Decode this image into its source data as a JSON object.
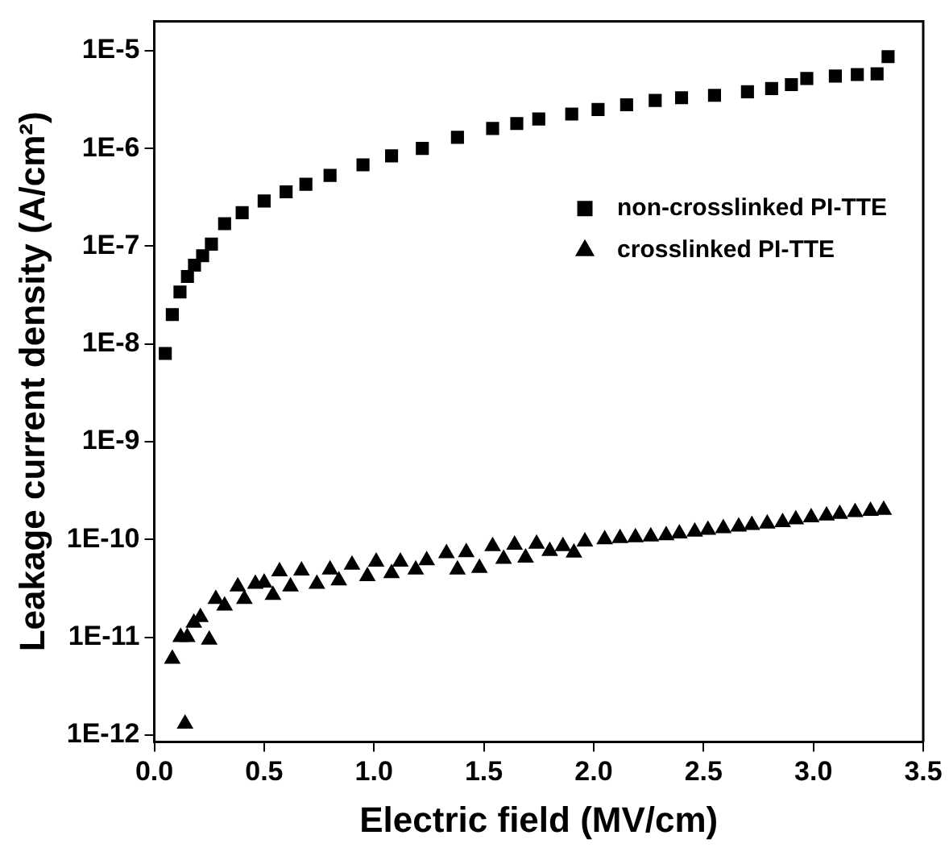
{
  "chart_data": {
    "type": "scatter",
    "xlabel": "Electric field (MV/cm)",
    "ylabel": "Leakage current density (A/cm²)",
    "log": "y",
    "xlim": [
      0,
      3.5
    ],
    "xticks": [
      {
        "value": 0,
        "label": "0.0"
      },
      {
        "value": 0.5,
        "label": "0.5"
      },
      {
        "value": 1,
        "label": "1.0"
      },
      {
        "value": 1.5,
        "label": "1.5"
      },
      {
        "value": 2,
        "label": "2.0"
      },
      {
        "value": 2.5,
        "label": "2.5"
      },
      {
        "value": 3,
        "label": "3.0"
      },
      {
        "value": 3.5,
        "label": "3.5"
      }
    ],
    "ylim": [
      8.5e-13,
      2e-05
    ],
    "yticks": [
      {
        "value": 1e-12,
        "label": "1E-12"
      },
      {
        "value": 1e-11,
        "label": "1E-11"
      },
      {
        "value": 1e-10,
        "label": "1E-10"
      },
      {
        "value": 1e-09,
        "label": "1E-9"
      },
      {
        "value": 1e-08,
        "label": "1E-8"
      },
      {
        "value": 1e-07,
        "label": "1E-7"
      },
      {
        "value": 1e-06,
        "label": "1E-6"
      },
      {
        "value": 1e-05,
        "label": "1E-5"
      }
    ],
    "legend": "right",
    "grid": false,
    "series": [
      {
        "name": "non-crosslinked PI-TTE",
        "color": "#000000",
        "marker": "square",
        "x": [
          0.05,
          0.082,
          0.117,
          0.151,
          0.183,
          0.22,
          0.26,
          0.32,
          0.4,
          0.5,
          0.6,
          0.69,
          0.8,
          0.95,
          1.08,
          1.22,
          1.38,
          1.54,
          1.65,
          1.75,
          1.9,
          2.02,
          2.15,
          2.28,
          2.4,
          2.55,
          2.7,
          2.81,
          2.9,
          2.97,
          3.1,
          3.2,
          3.29,
          3.34
        ],
        "values": [
          8e-09,
          2e-08,
          3.4e-08,
          4.9e-08,
          6.4e-08,
          8e-08,
          1.05e-07,
          1.7e-07,
          2.2e-07,
          2.9e-07,
          3.6e-07,
          4.3e-07,
          5.3e-07,
          6.8e-07,
          8.4e-07,
          1e-06,
          1.3e-06,
          1.6e-06,
          1.8e-06,
          2e-06,
          2.25e-06,
          2.5e-06,
          2.8e-06,
          3.1e-06,
          3.3e-06,
          3.5e-06,
          3.8e-06,
          4.1e-06,
          4.5e-06,
          5.2e-06,
          5.5e-06,
          5.7e-06,
          5.8e-06,
          8.7e-06
        ]
      },
      {
        "name": "crosslinked PI-TTE",
        "color": "#000000",
        "marker": "triangle",
        "x": [
          0.082,
          0.12,
          0.14,
          0.15,
          0.18,
          0.21,
          0.25,
          0.28,
          0.32,
          0.38,
          0.41,
          0.46,
          0.5,
          0.54,
          0.57,
          0.62,
          0.67,
          0.74,
          0.8,
          0.84,
          0.9,
          0.97,
          1.01,
          1.08,
          1.12,
          1.19,
          1.24,
          1.33,
          1.38,
          1.42,
          1.48,
          1.54,
          1.59,
          1.64,
          1.69,
          1.74,
          1.8,
          1.86,
          1.91,
          1.96,
          2.05,
          2.12,
          2.19,
          2.26,
          2.33,
          2.39,
          2.46,
          2.52,
          2.59,
          2.66,
          2.72,
          2.79,
          2.86,
          2.92,
          2.99,
          3.06,
          3.12,
          3.19,
          3.26,
          3.32
        ],
        "values": [
          6e-12,
          1e-11,
          1.3e-12,
          1e-11,
          1.4e-11,
          1.6e-11,
          9.4e-12,
          2.45e-11,
          2.1e-11,
          3.3e-11,
          2.45e-11,
          3.5e-11,
          3.6e-11,
          2.7e-11,
          4.7e-11,
          3.3e-11,
          4.8e-11,
          3.5e-11,
          4.9e-11,
          3.8e-11,
          5.5e-11,
          4.2e-11,
          5.9e-11,
          4.5e-11,
          5.9e-11,
          4.9e-11,
          6.1e-11,
          7.2e-11,
          4.9e-11,
          7.4e-11,
          5.1e-11,
          8.5e-11,
          6.3e-11,
          8.8e-11,
          6.5e-11,
          9e-11,
          7.6e-11,
          8.5e-11,
          7.3e-11,
          9.5e-11,
          1e-10,
          1.03e-10,
          1.05e-10,
          1.07e-10,
          1.1e-10,
          1.15e-10,
          1.2e-10,
          1.25e-10,
          1.3e-10,
          1.35e-10,
          1.4e-10,
          1.45e-10,
          1.5e-10,
          1.6e-10,
          1.68e-10,
          1.75e-10,
          1.82e-10,
          1.9e-10,
          1.95e-10,
          2e-10
        ]
      }
    ]
  }
}
